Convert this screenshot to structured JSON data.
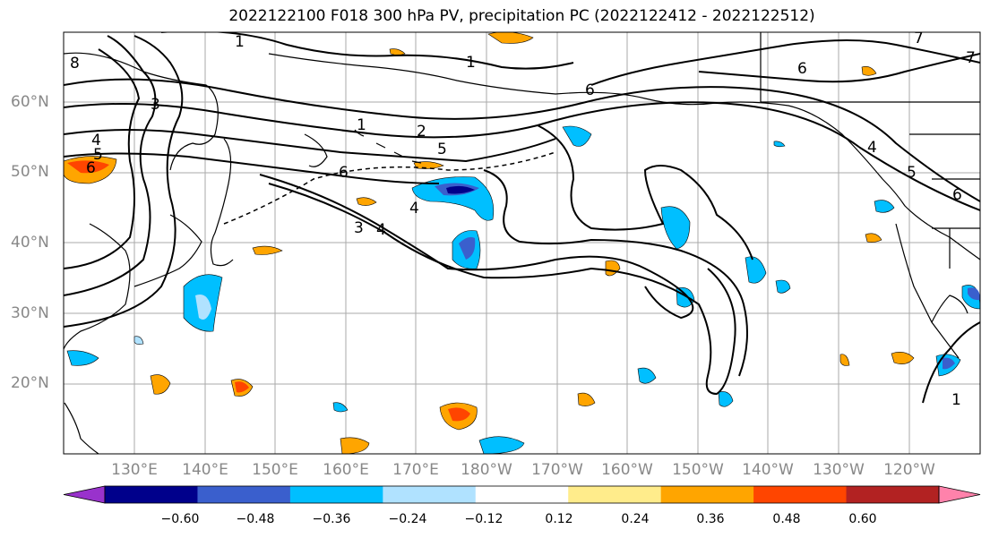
{
  "title": "2022122100 F018 300 hPa PV, precipitation PC (2022122412 - 2022122512)",
  "lat_labels": [
    "60°N",
    "50°N",
    "40°N",
    "30°N",
    "20°N"
  ],
  "lon_labels": [
    "130°E",
    "140°E",
    "150°E",
    "160°E",
    "170°E",
    "180°W",
    "170°W",
    "160°W",
    "150°W",
    "140°W",
    "130°W",
    "120°W"
  ],
  "contour_labels": [
    "1",
    "1",
    "1",
    "2",
    "5",
    "6",
    "6",
    "6",
    "4",
    "4",
    "5",
    "6",
    "3",
    "4",
    "5",
    "4",
    "7",
    "7",
    "8",
    "1",
    "3",
    "6"
  ],
  "colorbar": {
    "ticks": [
      "−0.60",
      "−0.48",
      "−0.36",
      "−0.24",
      "−0.12",
      "0.12",
      "0.24",
      "0.36",
      "0.48",
      "0.60"
    ],
    "colors": [
      "#9932cc",
      "#00008b",
      "#3a5fcd",
      "#00bfff",
      "#b0e2ff",
      "#ffffff",
      "#ffec8b",
      "#ffa500",
      "#ff4500",
      "#b22222",
      "#ff82ab"
    ]
  }
}
